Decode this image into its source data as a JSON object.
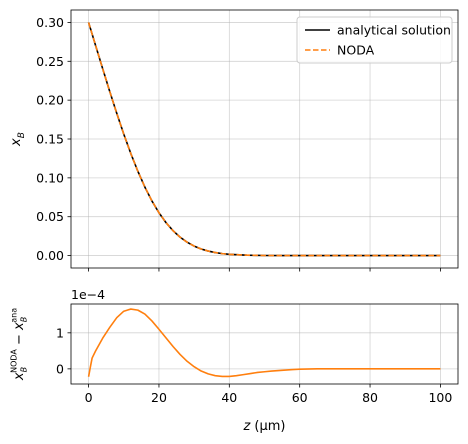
{
  "chart_data": [
    {
      "type": "line",
      "ylabel": "x_B",
      "xlim": [
        -5,
        105
      ],
      "ylim": [
        -0.016,
        0.316
      ],
      "grid": true,
      "legend_placement": "top-right",
      "yticks": [
        0.0,
        0.05,
        0.1,
        0.15,
        0.2,
        0.25,
        0.3
      ],
      "ytick_labels": [
        "0.00",
        "0.05",
        "0.10",
        "0.15",
        "0.20",
        "0.25",
        "0.30"
      ],
      "xticks": [
        0,
        20,
        40,
        60,
        80,
        100
      ],
      "series": [
        {
          "name": "analytical solution",
          "style": "solid",
          "color": "#000000",
          "x": [
            0,
            2,
            4,
            6,
            8,
            10,
            12,
            14,
            16,
            18,
            20,
            22,
            24,
            26,
            28,
            30,
            32,
            34,
            36,
            38,
            40,
            45,
            50,
            55,
            60,
            70,
            80,
            90,
            100
          ],
          "y": [
            0.3,
            0.2702,
            0.2405,
            0.2113,
            0.1831,
            0.1563,
            0.1313,
            0.1085,
            0.0881,
            0.0703,
            0.0551,
            0.0424,
            0.032,
            0.0237,
            0.0172,
            0.0122,
            0.0085,
            0.0058,
            0.0039,
            0.0025,
            0.0016,
            0.0005,
            0.0001,
            2e-05,
            0.0,
            0.0,
            0.0,
            0.0,
            0.0
          ]
        },
        {
          "name": "NODA",
          "style": "dashed",
          "color": "#ff7f0e",
          "x": [
            0,
            2,
            4,
            6,
            8,
            10,
            12,
            14,
            16,
            18,
            20,
            22,
            24,
            26,
            28,
            30,
            32,
            34,
            36,
            38,
            40,
            45,
            50,
            55,
            60,
            70,
            80,
            90,
            100
          ],
          "y": [
            0.3,
            0.2702,
            0.2405,
            0.2113,
            0.1831,
            0.1563,
            0.1313,
            0.1085,
            0.0881,
            0.0703,
            0.0551,
            0.0424,
            0.032,
            0.0237,
            0.0172,
            0.0122,
            0.0085,
            0.0058,
            0.0039,
            0.0025,
            0.0016,
            0.0005,
            0.0001,
            2e-05,
            0.0,
            0.0,
            0.0,
            0.0,
            0.0
          ]
        }
      ]
    },
    {
      "type": "line",
      "xlabel": "z (μm)",
      "ylabel": "x_B^NODA − x_B^ana",
      "offset_label": "1e−4",
      "xlim": [
        -5,
        105
      ],
      "ylim": [
        -0.42,
        1.8
      ],
      "grid": true,
      "yticks": [
        0,
        1
      ],
      "ytick_labels": [
        "0",
        "1"
      ],
      "xticks": [
        0,
        20,
        40,
        60,
        80,
        100
      ],
      "xtick_labels": [
        "0",
        "20",
        "40",
        "60",
        "80",
        "100"
      ],
      "series": [
        {
          "color": "#ff7f0e",
          "style": "solid",
          "x": [
            0,
            0.5,
            1,
            2,
            4,
            6,
            8,
            10,
            12,
            14,
            16,
            18,
            20,
            22,
            24,
            26,
            28,
            30,
            32,
            34,
            36,
            38,
            40,
            42,
            44,
            46,
            48,
            50,
            52,
            55,
            58,
            60,
            65,
            70,
            80,
            90,
            100
          ],
          "y": [
            -0.22,
            0.05,
            0.3,
            0.5,
            0.85,
            1.15,
            1.42,
            1.6,
            1.66,
            1.63,
            1.52,
            1.33,
            1.1,
            0.86,
            0.62,
            0.4,
            0.21,
            0.06,
            -0.06,
            -0.14,
            -0.19,
            -0.21,
            -0.21,
            -0.19,
            -0.16,
            -0.13,
            -0.1,
            -0.08,
            -0.06,
            -0.04,
            -0.02,
            -0.01,
            0.0,
            0.0,
            0.0,
            0.0,
            0.0
          ]
        }
      ]
    }
  ]
}
